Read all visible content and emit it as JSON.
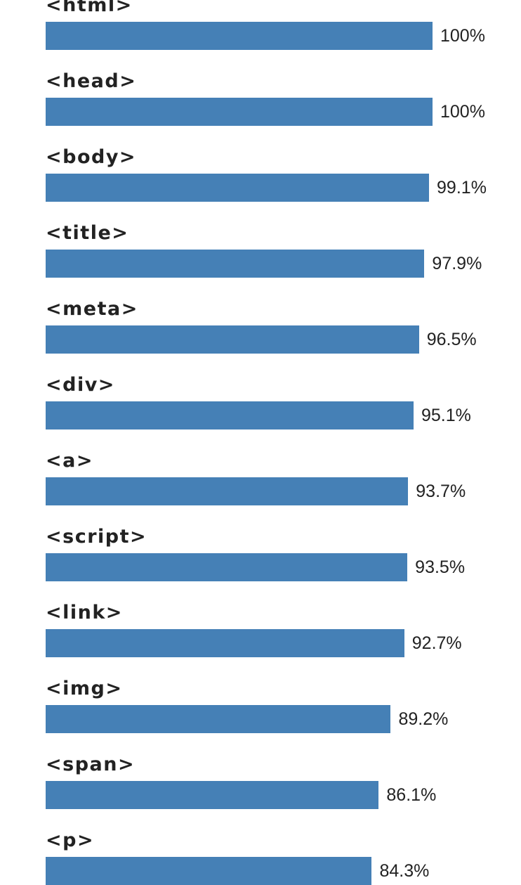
{
  "chart_data": {
    "type": "bar",
    "orientation": "horizontal",
    "categories": [
      "<html>",
      "<head>",
      "<body>",
      "<title>",
      "<meta>",
      "<div>",
      "<a>",
      "<script>",
      "<link>",
      "<img>",
      "<span>",
      "<p>"
    ],
    "values": [
      100,
      100,
      99.1,
      97.9,
      96.5,
      95.1,
      93.7,
      93.5,
      92.7,
      89.2,
      86.1,
      84.3
    ],
    "value_labels": [
      "100%",
      "100%",
      "99.1%",
      "97.9%",
      "96.5%",
      "95.1%",
      "93.7%",
      "93.5%",
      "92.7%",
      "89.2%",
      "86.1%",
      "84.3%"
    ],
    "unit": "%",
    "xlim": [
      0,
      100
    ],
    "grid": false,
    "legend": "none",
    "bar_color": "#4580b6"
  }
}
